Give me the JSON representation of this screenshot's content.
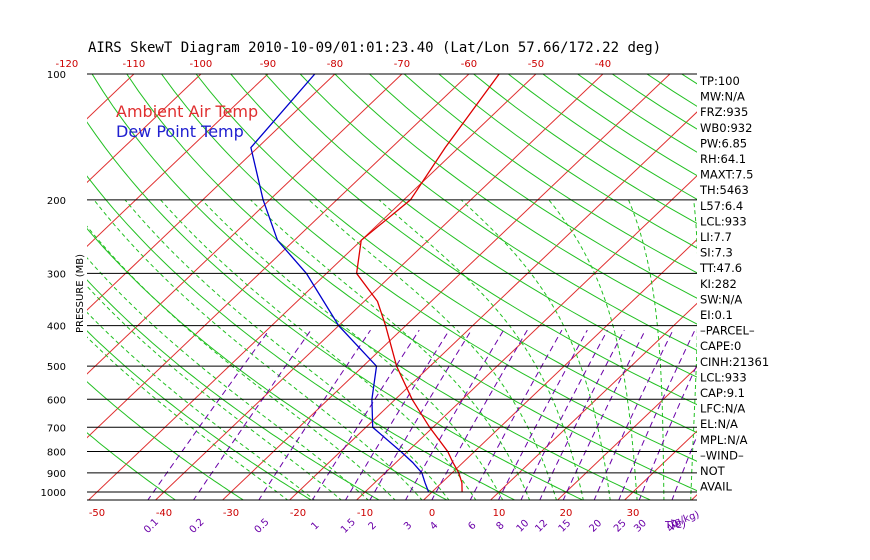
{
  "title": "AIRS SkewT Diagram 2010-10-09/01:01:23.40 (Lat/Lon 57.66/172.22 deg)",
  "chart_data": {
    "type": "line",
    "chart_kind": "skew-T log-P",
    "ylabel": "PRESSURE (MB)",
    "xlabel": "T(C)",
    "mixing_ratio_label": "(g/kg)",
    "pressure_range": [
      1000,
      100
    ],
    "pressure_ticks": [
      100,
      200,
      300,
      400,
      500,
      600,
      700,
      800,
      900,
      1000
    ],
    "bottom_temp_ticks": [
      -50,
      -40,
      -30,
      -20,
      -10,
      0,
      10,
      20,
      30
    ],
    "top_temp_ticks": [
      -120,
      -110,
      -100,
      -90,
      -80,
      -70,
      -60,
      -50,
      -40
    ],
    "mixing_ratio_ticks": [
      "0.1",
      "0.2",
      "0.5",
      "1",
      "1.5",
      "2",
      "3",
      "4",
      "6",
      "8",
      "10",
      "12",
      "15",
      "20",
      "25",
      "30",
      "40"
    ],
    "legend": [
      "Ambient Air Temp",
      "Dew Point Temp"
    ],
    "series": [
      {
        "name": "Ambient Air Temp",
        "color": "#dd0000",
        "points": [
          {
            "p": 1000,
            "t": 4.5
          },
          {
            "p": 950,
            "t": 3.0
          },
          {
            "p": 900,
            "t": 1.0
          },
          {
            "p": 850,
            "t": -1.5
          },
          {
            "p": 800,
            "t": -4.0
          },
          {
            "p": 700,
            "t": -10.5
          },
          {
            "p": 600,
            "t": -17.5
          },
          {
            "p": 500,
            "t": -25.0
          },
          {
            "p": 400,
            "t": -33.0
          },
          {
            "p": 350,
            "t": -38.0
          },
          {
            "p": 300,
            "t": -45.5
          },
          {
            "p": 250,
            "t": -50.0
          },
          {
            "p": 200,
            "t": -49.0
          },
          {
            "p": 150,
            "t": -52.0
          },
          {
            "p": 100,
            "t": -55.5
          }
        ]
      },
      {
        "name": "Dew Point Temp",
        "color": "#0000cc",
        "points": [
          {
            "p": 1000,
            "t": -0.5
          },
          {
            "p": 950,
            "t": -2.5
          },
          {
            "p": 900,
            "t": -4.5
          },
          {
            "p": 850,
            "t": -7.5
          },
          {
            "p": 800,
            "t": -11.0
          },
          {
            "p": 700,
            "t": -19.0
          },
          {
            "p": 600,
            "t": -23.5
          },
          {
            "p": 500,
            "t": -28.0
          },
          {
            "p": 400,
            "t": -40.0
          },
          {
            "p": 300,
            "t": -53.0
          },
          {
            "p": 250,
            "t": -62.5
          },
          {
            "p": 200,
            "t": -71.0
          },
          {
            "p": 150,
            "t": -81.0
          },
          {
            "p": 100,
            "t": -83.0
          }
        ]
      }
    ]
  },
  "indices": [
    "TP:100",
    "MW:N/A",
    "FRZ:935",
    "WB0:932",
    "PW:6.85",
    "RH:64.1",
    "MAXT:7.5",
    "TH:5463",
    "L57:6.4",
    "LCL:933",
    "LI:7.7",
    "SI:7.3",
    "TT:47.6",
    "KI:282",
    "SW:N/A",
    "EI:0.1",
    "–PARCEL–",
    "CAPE:0",
    "CINH:21361",
    "LCL:933",
    "CAP:9.1",
    "LFC:N/A",
    "EL:N/A",
    "MPL:N/A",
    "–WIND–",
    "NOT",
    "AVAIL"
  ],
  "colors": {
    "isotherm": "#e03030",
    "dry_adiabat": "#22c022",
    "moist_adiabat": "#22c022",
    "mixing_ratio": "#6a00a8",
    "axis": "#000000"
  }
}
